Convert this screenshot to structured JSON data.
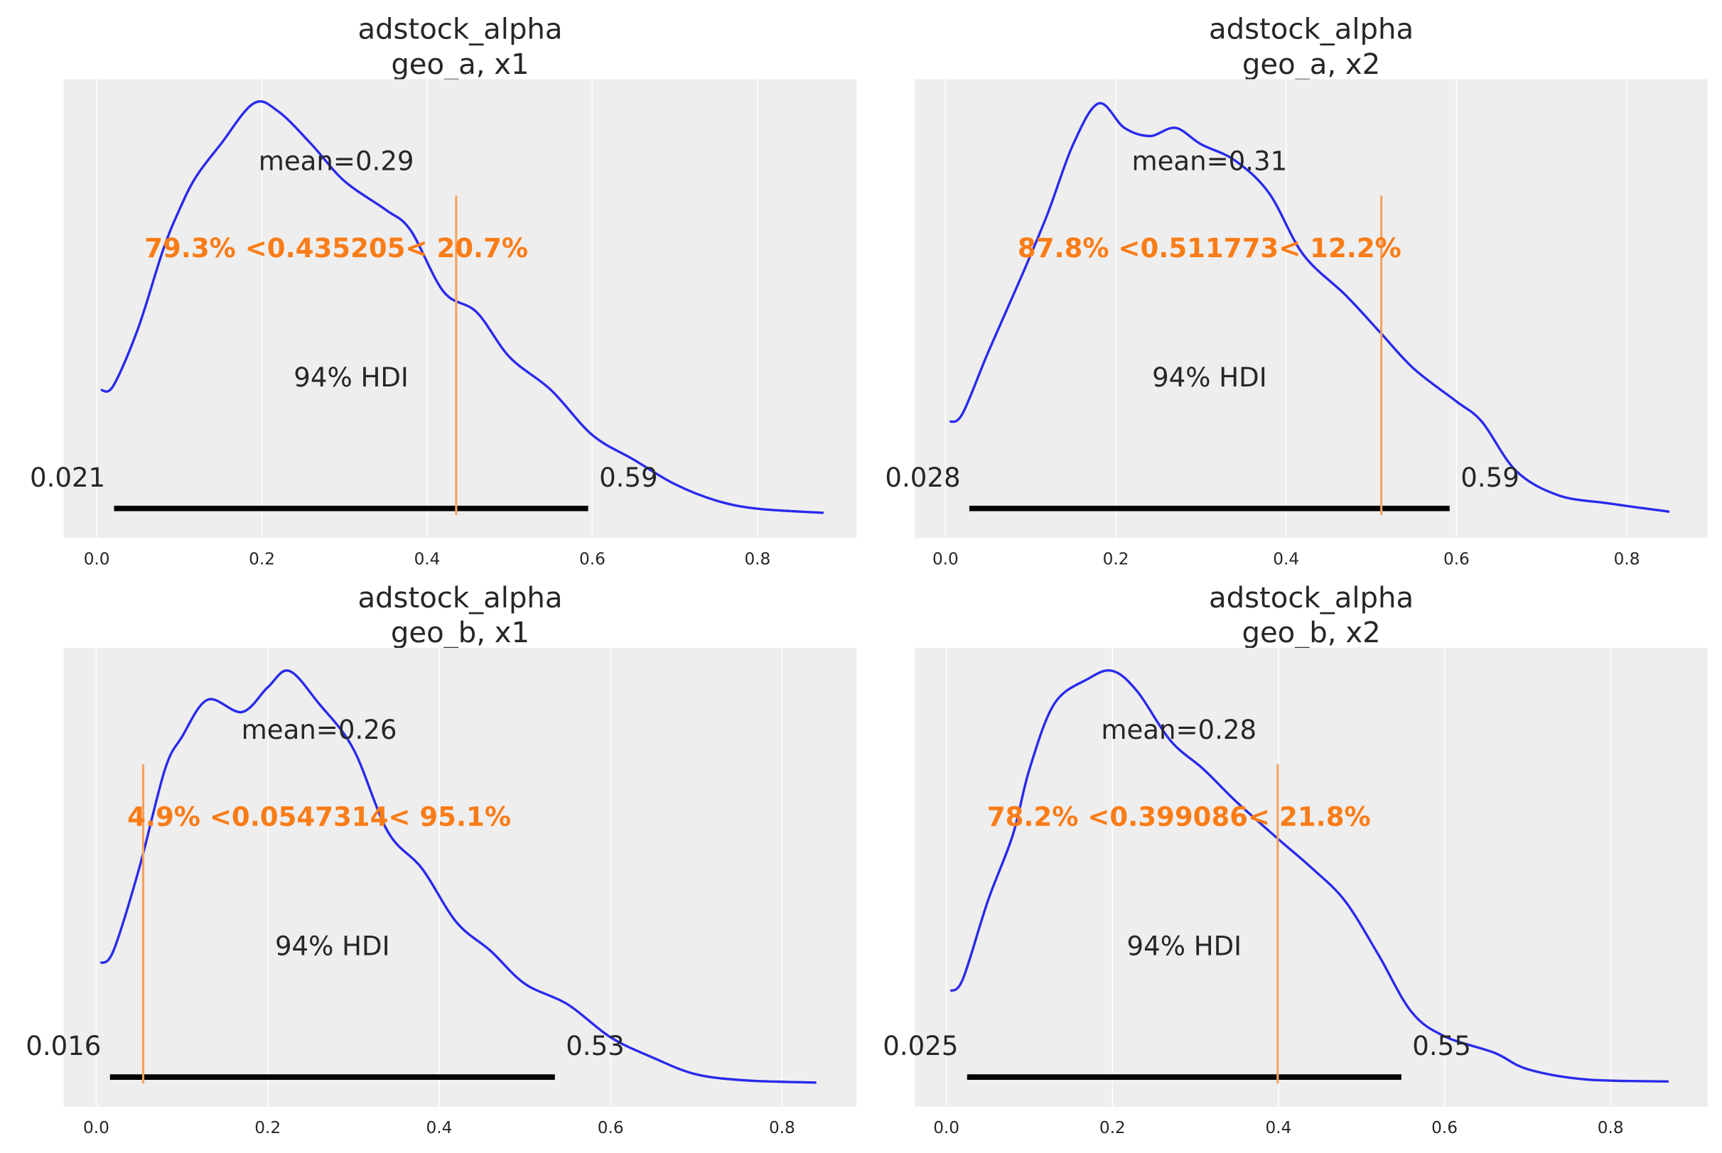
{
  "colors": {
    "axes_background": "#eeeeee",
    "grid": "#ffffff",
    "kde_line": "#2a2aeb",
    "ref_line": "#f4a261",
    "ref_text": "#fa7c17",
    "hdi_bar": "#000000",
    "text": "#262626"
  },
  "chart_data": [
    {
      "type": "line",
      "title": "adstock_alpha",
      "subtitle": "geo_a, x1",
      "grid": true,
      "xlim": [
        -0.04,
        0.92
      ],
      "xticks": [
        "0.0",
        "0.2",
        "0.4",
        "0.6",
        "0.8"
      ],
      "xtick_values": [
        0,
        0.2,
        0.4,
        0.6,
        0.8
      ],
      "density_note_scale": "relative",
      "x": [
        0.005,
        0.02,
        0.05,
        0.08,
        0.1,
        0.12,
        0.15,
        0.19,
        0.22,
        0.26,
        0.3,
        0.35,
        0.38,
        0.42,
        0.46,
        0.5,
        0.55,
        0.6,
        0.65,
        0.7,
        0.75,
        0.8,
        0.88
      ],
      "y": [
        0.3,
        0.31,
        0.45,
        0.64,
        0.74,
        0.82,
        0.9,
        1.0,
        0.98,
        0.9,
        0.81,
        0.74,
        0.69,
        0.54,
        0.49,
        0.38,
        0.3,
        0.19,
        0.13,
        0.07,
        0.03,
        0.01,
        0.0
      ],
      "mean": 0.29,
      "mean_label": "mean=0.29",
      "hdi": [
        0.021,
        0.595
      ],
      "hdi_label": "94% HDI",
      "hdi_low_label": "0.021",
      "hdi_high_label": "0.59",
      "ref_val": 0.435205,
      "ref_label": "79.3% <0.435205< 20.7%"
    },
    {
      "type": "line",
      "title": "adstock_alpha",
      "subtitle": "geo_a, x2",
      "grid": true,
      "xlim": [
        -0.036,
        0.895
      ],
      "xticks": [
        "0.0",
        "0.2",
        "0.4",
        "0.6",
        "0.8"
      ],
      "xtick_values": [
        0,
        0.2,
        0.4,
        0.6,
        0.8
      ],
      "x": [
        0.005,
        0.02,
        0.05,
        0.09,
        0.12,
        0.15,
        0.18,
        0.21,
        0.24,
        0.27,
        0.3,
        0.34,
        0.38,
        0.42,
        0.47,
        0.51,
        0.55,
        0.6,
        0.63,
        0.67,
        0.72,
        0.78,
        0.85
      ],
      "y": [
        0.22,
        0.24,
        0.39,
        0.58,
        0.73,
        0.9,
        1.0,
        0.94,
        0.92,
        0.94,
        0.9,
        0.86,
        0.78,
        0.63,
        0.53,
        0.44,
        0.35,
        0.27,
        0.22,
        0.1,
        0.04,
        0.02,
        0.0
      ],
      "mean": 0.31,
      "mean_label": "mean=0.31",
      "hdi": [
        0.028,
        0.592
      ],
      "hdi_label": "94% HDI",
      "hdi_low_label": "0.028",
      "hdi_high_label": "0.59",
      "ref_val": 0.511773,
      "ref_label": "87.8% <0.511773< 12.2%"
    },
    {
      "type": "line",
      "title": "adstock_alpha",
      "subtitle": "geo_b, x1",
      "grid": true,
      "xlim": [
        -0.038,
        0.887
      ],
      "xticks": [
        "0.0",
        "0.2",
        "0.4",
        "0.6",
        "0.8"
      ],
      "xtick_values": [
        0,
        0.2,
        0.4,
        0.6,
        0.8
      ],
      "x": [
        0.005,
        0.02,
        0.05,
        0.08,
        0.1,
        0.13,
        0.17,
        0.2,
        0.225,
        0.26,
        0.3,
        0.34,
        0.38,
        0.42,
        0.46,
        0.5,
        0.55,
        0.6,
        0.65,
        0.7,
        0.76,
        0.84
      ],
      "y": [
        0.29,
        0.32,
        0.52,
        0.76,
        0.84,
        0.93,
        0.9,
        0.96,
        1.0,
        0.92,
        0.81,
        0.61,
        0.52,
        0.39,
        0.32,
        0.24,
        0.19,
        0.11,
        0.06,
        0.02,
        0.005,
        0.0
      ],
      "mean": 0.26,
      "mean_label": "mean=0.26",
      "hdi": [
        0.016,
        0.535
      ],
      "hdi_label": "94% HDI",
      "hdi_low_label": "0.016",
      "hdi_high_label": "0.53",
      "ref_val": 0.0547314,
      "ref_label": "4.9% <0.0547314< 95.1%"
    },
    {
      "type": "line",
      "title": "adstock_alpha",
      "subtitle": "geo_b, x2",
      "grid": true,
      "xlim": [
        -0.038,
        0.917
      ],
      "xticks": [
        "0.0",
        "0.2",
        "0.4",
        "0.6",
        "0.8"
      ],
      "xtick_values": [
        0,
        0.2,
        0.4,
        0.6,
        0.8
      ],
      "x": [
        0.005,
        0.02,
        0.05,
        0.08,
        0.1,
        0.13,
        0.17,
        0.2,
        0.23,
        0.27,
        0.31,
        0.35,
        0.4,
        0.44,
        0.48,
        0.52,
        0.56,
        0.6,
        0.66,
        0.7,
        0.77,
        0.87
      ],
      "y": [
        0.22,
        0.25,
        0.44,
        0.6,
        0.76,
        0.92,
        0.98,
        1.0,
        0.95,
        0.83,
        0.76,
        0.68,
        0.59,
        0.52,
        0.44,
        0.31,
        0.17,
        0.11,
        0.07,
        0.03,
        0.005,
        0.0
      ],
      "mean": 0.28,
      "mean_label": "mean=0.28",
      "hdi": [
        0.025,
        0.548
      ],
      "hdi_label": "94% HDI",
      "hdi_low_label": "0.025",
      "hdi_high_label": "0.55",
      "ref_val": 0.399086,
      "ref_label": "78.2% <0.399086< 21.8%"
    }
  ]
}
